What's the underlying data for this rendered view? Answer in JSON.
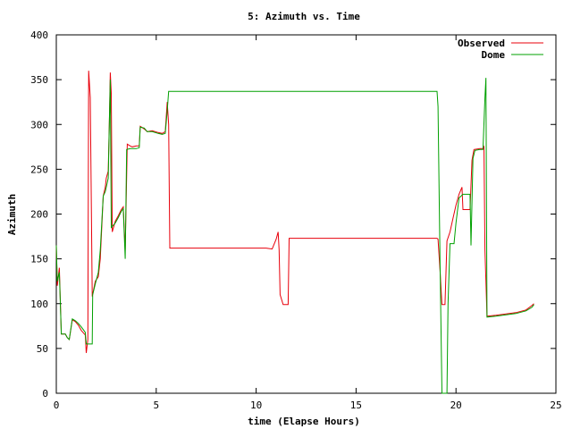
{
  "chart_data": {
    "type": "line",
    "title": "5: Azimuth vs. Time",
    "xlabel": "time (Elapse Hours)",
    "ylabel": "Azimuth",
    "xlim": [
      0,
      25
    ],
    "ylim": [
      0,
      400
    ],
    "x_ticks": [
      0,
      5,
      10,
      15,
      20,
      25
    ],
    "y_ticks": [
      0,
      50,
      100,
      150,
      200,
      250,
      300,
      350,
      400
    ],
    "grid": false,
    "legend_position": "top-right",
    "series": [
      {
        "name": "Observed",
        "color": "#e8000b",
        "points": [
          [
            0.0,
            165
          ],
          [
            0.05,
            120
          ],
          [
            0.15,
            140
          ],
          [
            0.25,
            66
          ],
          [
            0.45,
            66
          ],
          [
            0.55,
            62
          ],
          [
            0.65,
            60
          ],
          [
            0.8,
            82
          ],
          [
            0.95,
            80
          ],
          [
            1.1,
            76
          ],
          [
            1.25,
            70
          ],
          [
            1.45,
            65
          ],
          [
            1.5,
            45
          ],
          [
            1.58,
            60
          ],
          [
            1.62,
            360
          ],
          [
            1.7,
            330
          ],
          [
            1.8,
            108
          ],
          [
            1.95,
            125
          ],
          [
            2.1,
            130
          ],
          [
            2.2,
            150
          ],
          [
            2.35,
            220
          ],
          [
            2.45,
            230
          ],
          [
            2.5,
            240
          ],
          [
            2.6,
            248
          ],
          [
            2.65,
            300
          ],
          [
            2.7,
            358
          ],
          [
            2.75,
            335
          ],
          [
            2.8,
            180
          ],
          [
            2.95,
            192
          ],
          [
            3.1,
            198
          ],
          [
            3.25,
            205
          ],
          [
            3.35,
            208
          ],
          [
            3.45,
            160
          ],
          [
            3.55,
            278
          ],
          [
            3.7,
            276
          ],
          [
            3.8,
            275
          ],
          [
            4.0,
            276
          ],
          [
            4.15,
            276
          ],
          [
            4.2,
            298
          ],
          [
            4.4,
            295
          ],
          [
            4.55,
            292
          ],
          [
            4.8,
            293
          ],
          [
            5.1,
            291
          ],
          [
            5.3,
            290
          ],
          [
            5.45,
            292
          ],
          [
            5.55,
            325
          ],
          [
            5.62,
            300
          ],
          [
            5.68,
            162
          ],
          [
            6.0,
            162
          ],
          [
            8.0,
            162
          ],
          [
            10.5,
            162
          ],
          [
            10.8,
            161
          ],
          [
            11.0,
            172
          ],
          [
            11.1,
            180
          ],
          [
            11.15,
            160
          ],
          [
            11.2,
            110
          ],
          [
            11.35,
            99
          ],
          [
            11.6,
            99
          ],
          [
            11.65,
            173
          ],
          [
            12.0,
            173
          ],
          [
            15.0,
            173
          ],
          [
            19.05,
            173
          ],
          [
            19.1,
            172
          ],
          [
            19.2,
            138
          ],
          [
            19.3,
            99
          ],
          [
            19.45,
            99
          ],
          [
            19.55,
            170
          ],
          [
            19.7,
            180
          ],
          [
            19.85,
            195
          ],
          [
            20.0,
            210
          ],
          [
            20.15,
            222
          ],
          [
            20.3,
            230
          ],
          [
            20.35,
            205
          ],
          [
            20.7,
            205
          ],
          [
            20.8,
            260
          ],
          [
            20.9,
            272
          ],
          [
            21.2,
            273
          ],
          [
            21.35,
            273
          ],
          [
            21.4,
            275
          ],
          [
            21.45,
            160
          ],
          [
            21.55,
            86
          ],
          [
            22.0,
            87
          ],
          [
            23.0,
            90
          ],
          [
            23.5,
            93
          ],
          [
            23.8,
            98
          ],
          [
            23.9,
            100
          ]
        ]
      },
      {
        "name": "Dome",
        "color": "#00a000",
        "points": [
          [
            0.0,
            165
          ],
          [
            0.05,
            125
          ],
          [
            0.15,
            135
          ],
          [
            0.25,
            66
          ],
          [
            0.45,
            66
          ],
          [
            0.55,
            62
          ],
          [
            0.65,
            60
          ],
          [
            0.8,
            83
          ],
          [
            0.95,
            81
          ],
          [
            1.1,
            78
          ],
          [
            1.25,
            74
          ],
          [
            1.45,
            68
          ],
          [
            1.5,
            55
          ],
          [
            1.8,
            55
          ],
          [
            1.82,
            110
          ],
          [
            1.95,
            122
          ],
          [
            2.1,
            135
          ],
          [
            2.2,
            160
          ],
          [
            2.35,
            220
          ],
          [
            2.45,
            225
          ],
          [
            2.5,
            230
          ],
          [
            2.6,
            240
          ],
          [
            2.65,
            300
          ],
          [
            2.7,
            350
          ],
          [
            2.75,
            185
          ],
          [
            2.95,
            190
          ],
          [
            3.1,
            196
          ],
          [
            3.25,
            203
          ],
          [
            3.35,
            206
          ],
          [
            3.45,
            150
          ],
          [
            3.52,
            272
          ],
          [
            3.7,
            273
          ],
          [
            4.0,
            273
          ],
          [
            4.15,
            274
          ],
          [
            4.2,
            297
          ],
          [
            4.4,
            296
          ],
          [
            4.55,
            292
          ],
          [
            4.8,
            292
          ],
          [
            5.1,
            290
          ],
          [
            5.3,
            289
          ],
          [
            5.45,
            290
          ],
          [
            5.55,
            315
          ],
          [
            5.62,
            337
          ],
          [
            7.0,
            337
          ],
          [
            10.0,
            337
          ],
          [
            15.0,
            337
          ],
          [
            19.05,
            337
          ],
          [
            19.1,
            320
          ],
          [
            19.2,
            150
          ],
          [
            19.3,
            0
          ],
          [
            19.55,
            0
          ],
          [
            19.6,
            100
          ],
          [
            19.7,
            167
          ],
          [
            19.9,
            167
          ],
          [
            20.0,
            190
          ],
          [
            20.15,
            218
          ],
          [
            20.35,
            222
          ],
          [
            20.7,
            222
          ],
          [
            20.75,
            165
          ],
          [
            20.85,
            262
          ],
          [
            20.95,
            271
          ],
          [
            21.2,
            272
          ],
          [
            21.35,
            272
          ],
          [
            21.45,
            330
          ],
          [
            21.5,
            352
          ],
          [
            21.55,
            85
          ],
          [
            22.0,
            86
          ],
          [
            23.0,
            89
          ],
          [
            23.5,
            92
          ],
          [
            23.8,
            96
          ],
          [
            23.9,
            99
          ]
        ]
      }
    ]
  }
}
